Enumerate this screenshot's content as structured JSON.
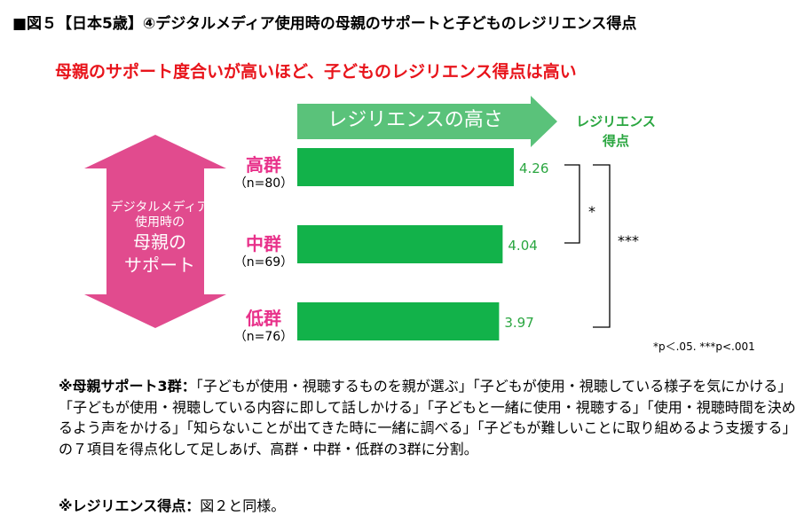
{
  "figure_title": "■図５【日本5歳】④デジタルメディア使用時の母親のサポートと子どものレジリエンス得点",
  "subtitle": "母親のサポート度合いが高いほど、子どものレジリエンス得点は高い",
  "arrow_label": "レジリエンスの高さ",
  "y_axis_label": {
    "line1": "レジリエンス",
    "line2": "得点"
  },
  "left_arrow_label": {
    "line1": "デジタルメディア",
    "line2": "使用時の",
    "line3": "母親の",
    "line4": "サポート"
  },
  "colors": {
    "bar": "#12b24a",
    "title_red": "#e8141b",
    "category_pink": "#e8318a",
    "arrow_green": "#5ac27a",
    "value_text": "#2aa640",
    "left_arrow": "#e14b8e"
  },
  "chart_data": {
    "type": "bar",
    "orientation": "horizontal",
    "categories": [
      "高群",
      "中群",
      "低群"
    ],
    "counts": [
      "（n=80）",
      "（n=69）",
      "（n=76）"
    ],
    "values": [
      4.26,
      4.04,
      3.97
    ],
    "value_labels": [
      "4.26",
      "4.04",
      "3.97"
    ],
    "significance": [
      {
        "between": [
          "高群",
          "中群"
        ],
        "label": "*"
      },
      {
        "between": [
          "高群",
          "低群"
        ],
        "label": "***"
      }
    ]
  },
  "p_note": "*p＜.05. ***p<.001",
  "notes": {
    "note1_label": "※母親サポート3群：",
    "note1_text": "「子どもが使用・視聴するものを親が選ぶ」「子どもが使用・視聴している様子を気にかける」「子どもが使用・視聴している内容に即して話しかける」「子どもと一緒に使用・視聴する」「使用・視聴時間を決めるよう声をかける」「知らないことが出てきた時に一緒に調べる」「子どもが難しいことに取り組めるよう支援する」の７項目を得点化して足しあげ、高群・中群・低群の3群に分割。",
    "note2_label": "※レジリエンス得点：",
    "note2_text": "図２と同様。"
  }
}
